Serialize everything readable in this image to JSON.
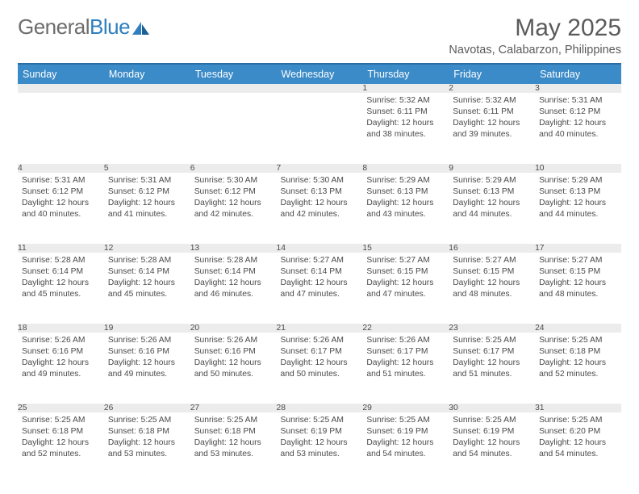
{
  "brand": {
    "part1": "General",
    "part2": "Blue"
  },
  "title": "May 2025",
  "location": "Navotas, Calabarzon, Philippines",
  "colors": {
    "header_bg": "#3b8bc8",
    "header_border": "#2a6da3",
    "row_border": "#3b7fb5",
    "daynum_bg": "#ececec",
    "text": "#4a4a4a",
    "brand_gray": "#6d6d6d",
    "brand_blue": "#2f7fbf"
  },
  "day_headers": [
    "Sunday",
    "Monday",
    "Tuesday",
    "Wednesday",
    "Thursday",
    "Friday",
    "Saturday"
  ],
  "weeks": [
    [
      null,
      null,
      null,
      null,
      {
        "n": "1",
        "sr": "5:32 AM",
        "ss": "6:11 PM",
        "dl": "12 hours and 38 minutes."
      },
      {
        "n": "2",
        "sr": "5:32 AM",
        "ss": "6:11 PM",
        "dl": "12 hours and 39 minutes."
      },
      {
        "n": "3",
        "sr": "5:31 AM",
        "ss": "6:12 PM",
        "dl": "12 hours and 40 minutes."
      }
    ],
    [
      {
        "n": "4",
        "sr": "5:31 AM",
        "ss": "6:12 PM",
        "dl": "12 hours and 40 minutes."
      },
      {
        "n": "5",
        "sr": "5:31 AM",
        "ss": "6:12 PM",
        "dl": "12 hours and 41 minutes."
      },
      {
        "n": "6",
        "sr": "5:30 AM",
        "ss": "6:12 PM",
        "dl": "12 hours and 42 minutes."
      },
      {
        "n": "7",
        "sr": "5:30 AM",
        "ss": "6:13 PM",
        "dl": "12 hours and 42 minutes."
      },
      {
        "n": "8",
        "sr": "5:29 AM",
        "ss": "6:13 PM",
        "dl": "12 hours and 43 minutes."
      },
      {
        "n": "9",
        "sr": "5:29 AM",
        "ss": "6:13 PM",
        "dl": "12 hours and 44 minutes."
      },
      {
        "n": "10",
        "sr": "5:29 AM",
        "ss": "6:13 PM",
        "dl": "12 hours and 44 minutes."
      }
    ],
    [
      {
        "n": "11",
        "sr": "5:28 AM",
        "ss": "6:14 PM",
        "dl": "12 hours and 45 minutes."
      },
      {
        "n": "12",
        "sr": "5:28 AM",
        "ss": "6:14 PM",
        "dl": "12 hours and 45 minutes."
      },
      {
        "n": "13",
        "sr": "5:28 AM",
        "ss": "6:14 PM",
        "dl": "12 hours and 46 minutes."
      },
      {
        "n": "14",
        "sr": "5:27 AM",
        "ss": "6:14 PM",
        "dl": "12 hours and 47 minutes."
      },
      {
        "n": "15",
        "sr": "5:27 AM",
        "ss": "6:15 PM",
        "dl": "12 hours and 47 minutes."
      },
      {
        "n": "16",
        "sr": "5:27 AM",
        "ss": "6:15 PM",
        "dl": "12 hours and 48 minutes."
      },
      {
        "n": "17",
        "sr": "5:27 AM",
        "ss": "6:15 PM",
        "dl": "12 hours and 48 minutes."
      }
    ],
    [
      {
        "n": "18",
        "sr": "5:26 AM",
        "ss": "6:16 PM",
        "dl": "12 hours and 49 minutes."
      },
      {
        "n": "19",
        "sr": "5:26 AM",
        "ss": "6:16 PM",
        "dl": "12 hours and 49 minutes."
      },
      {
        "n": "20",
        "sr": "5:26 AM",
        "ss": "6:16 PM",
        "dl": "12 hours and 50 minutes."
      },
      {
        "n": "21",
        "sr": "5:26 AM",
        "ss": "6:17 PM",
        "dl": "12 hours and 50 minutes."
      },
      {
        "n": "22",
        "sr": "5:26 AM",
        "ss": "6:17 PM",
        "dl": "12 hours and 51 minutes."
      },
      {
        "n": "23",
        "sr": "5:25 AM",
        "ss": "6:17 PM",
        "dl": "12 hours and 51 minutes."
      },
      {
        "n": "24",
        "sr": "5:25 AM",
        "ss": "6:18 PM",
        "dl": "12 hours and 52 minutes."
      }
    ],
    [
      {
        "n": "25",
        "sr": "5:25 AM",
        "ss": "6:18 PM",
        "dl": "12 hours and 52 minutes."
      },
      {
        "n": "26",
        "sr": "5:25 AM",
        "ss": "6:18 PM",
        "dl": "12 hours and 53 minutes."
      },
      {
        "n": "27",
        "sr": "5:25 AM",
        "ss": "6:18 PM",
        "dl": "12 hours and 53 minutes."
      },
      {
        "n": "28",
        "sr": "5:25 AM",
        "ss": "6:19 PM",
        "dl": "12 hours and 53 minutes."
      },
      {
        "n": "29",
        "sr": "5:25 AM",
        "ss": "6:19 PM",
        "dl": "12 hours and 54 minutes."
      },
      {
        "n": "30",
        "sr": "5:25 AM",
        "ss": "6:19 PM",
        "dl": "12 hours and 54 minutes."
      },
      {
        "n": "31",
        "sr": "5:25 AM",
        "ss": "6:20 PM",
        "dl": "12 hours and 54 minutes."
      }
    ]
  ],
  "labels": {
    "sunrise": "Sunrise:",
    "sunset": "Sunset:",
    "daylight": "Daylight:"
  }
}
